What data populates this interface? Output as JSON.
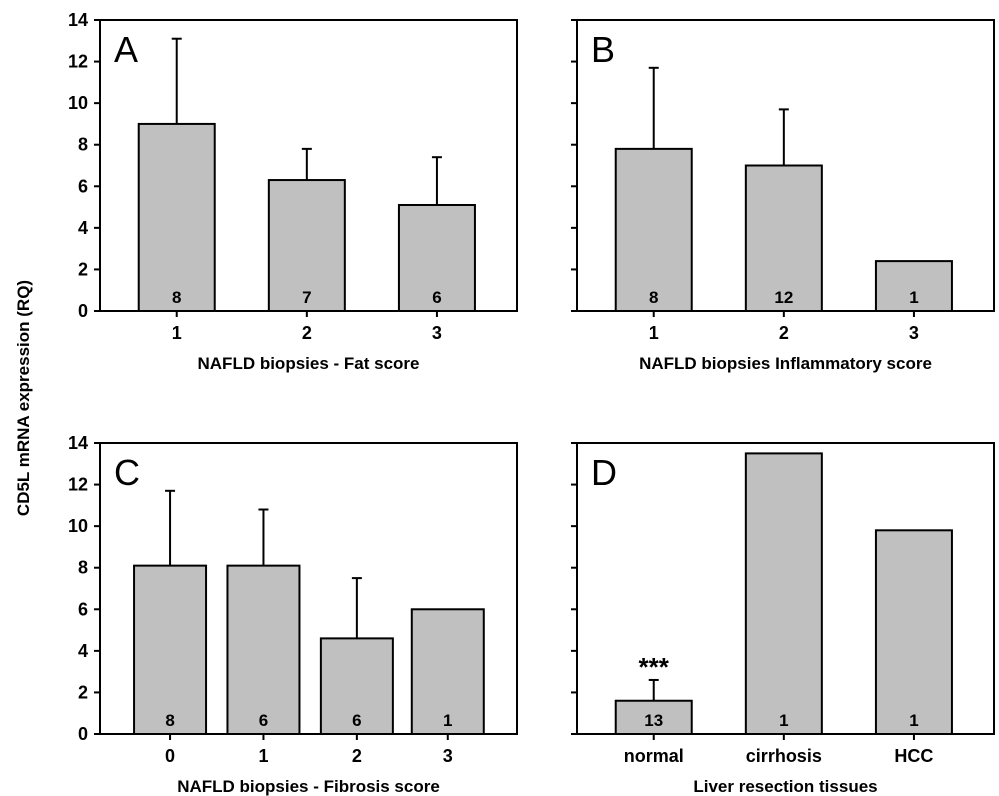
{
  "figure": {
    "ylabel": "CD5L mRNA expression (RQ)"
  },
  "chart_data": [
    {
      "type": "bar",
      "panel": "A",
      "xlabel": "NAFLD biopsies - Fat score",
      "categories": [
        "1",
        "2",
        "3"
      ],
      "values": [
        9.0,
        6.3,
        5.1
      ],
      "error_upper": [
        13.1,
        7.8,
        7.4
      ],
      "n_labels": [
        "8",
        "7",
        "6"
      ],
      "ylim": [
        0,
        14
      ],
      "yticks": [
        0,
        2,
        4,
        6,
        8,
        10,
        12,
        14
      ],
      "show_ytick_labels": true,
      "bar_color": "#c0c0c0",
      "annotations": []
    },
    {
      "type": "bar",
      "panel": "B",
      "xlabel": "NAFLD biopsies Inflammatory score",
      "categories": [
        "1",
        "2",
        "3"
      ],
      "values": [
        7.8,
        7.0,
        2.4
      ],
      "error_upper": [
        11.7,
        9.7,
        null
      ],
      "n_labels": [
        "8",
        "12",
        "1"
      ],
      "ylim": [
        0,
        14
      ],
      "yticks": [
        0,
        2,
        4,
        6,
        8,
        10,
        12,
        14
      ],
      "show_ytick_labels": false,
      "bar_color": "#c0c0c0",
      "annotations": []
    },
    {
      "type": "bar",
      "panel": "C",
      "xlabel": "NAFLD biopsies - Fibrosis score",
      "categories": [
        "0",
        "1",
        "2",
        "3"
      ],
      "values": [
        8.1,
        8.1,
        4.6,
        6.0
      ],
      "error_upper": [
        11.7,
        10.8,
        7.5,
        null
      ],
      "n_labels": [
        "8",
        "6",
        "6",
        "1"
      ],
      "ylim": [
        0,
        14
      ],
      "yticks": [
        0,
        2,
        4,
        6,
        8,
        10,
        12,
        14
      ],
      "show_ytick_labels": true,
      "bar_color": "#c0c0c0",
      "annotations": []
    },
    {
      "type": "bar",
      "panel": "D",
      "xlabel": "Liver resection tissues",
      "categories": [
        "normal",
        "cirrhosis",
        "HCC"
      ],
      "values": [
        1.6,
        13.5,
        9.8
      ],
      "error_upper": [
        2.6,
        null,
        null
      ],
      "n_labels": [
        "13",
        "1",
        "1"
      ],
      "ylim": [
        0,
        14
      ],
      "yticks": [
        0,
        2,
        4,
        6,
        8,
        10,
        12,
        14
      ],
      "show_ytick_labels": false,
      "bar_color": "#c0c0c0",
      "annotations": [
        {
          "category": "normal",
          "text": "***"
        }
      ]
    }
  ]
}
